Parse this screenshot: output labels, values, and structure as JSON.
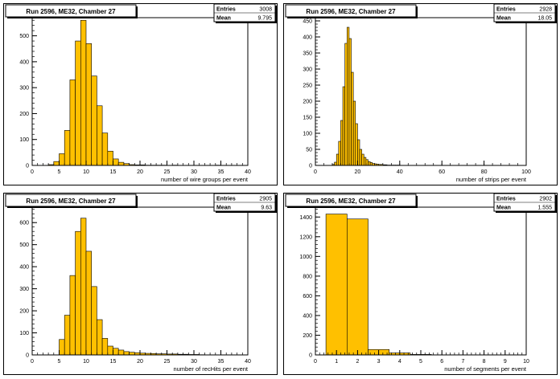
{
  "colors": {
    "fill": "#FFC000",
    "line": "#000000",
    "frame": "#ffffff"
  },
  "chart_data": [
    {
      "type": "bar",
      "title": "Run 2596, ME32, Chamber 27",
      "xlabel": "number of wire groups per event",
      "stats": {
        "entries_label": "Entries",
        "entries": "3008",
        "mean_label": "Mean",
        "mean": "9.795"
      },
      "xlim": [
        0,
        40
      ],
      "ylim": [
        0,
        570
      ],
      "xticks": [
        "0",
        "5",
        "10",
        "15",
        "20",
        "25",
        "30",
        "35",
        "40"
      ],
      "yticks": [
        "0",
        "100",
        "200",
        "300",
        "400",
        "500"
      ],
      "xtick_values": [
        0,
        5,
        10,
        15,
        20,
        25,
        30,
        35,
        40
      ],
      "ytick_values": [
        0,
        100,
        200,
        300,
        400,
        500
      ],
      "bin_edges_start": 3,
      "bin_width": 1,
      "values": [
        3,
        15,
        45,
        135,
        330,
        480,
        560,
        470,
        345,
        230,
        125,
        55,
        25,
        12,
        7,
        3,
        2,
        2,
        1,
        1,
        1,
        1,
        0,
        1,
        0,
        0,
        0,
        0,
        0,
        0,
        0,
        1
      ]
    },
    {
      "type": "bar",
      "title": "Run 2596, ME32, Chamber 27",
      "xlabel": "number of strips per event",
      "stats": {
        "entries_label": "Entries",
        "entries": "2928",
        "mean_label": "Mean",
        "mean": "18.05"
      },
      "xlim": [
        0,
        100
      ],
      "ylim": [
        0,
        460
      ],
      "xticks": [
        "0",
        "20",
        "40",
        "60",
        "80",
        "100"
      ],
      "yticks": [
        "0",
        "50",
        "100",
        "150",
        "200",
        "250",
        "300",
        "350",
        "400",
        "450"
      ],
      "xtick_values": [
        0,
        20,
        40,
        60,
        80,
        100
      ],
      "ytick_values": [
        0,
        50,
        100,
        150,
        200,
        250,
        300,
        350,
        400,
        450
      ],
      "bin_edges_start": 8,
      "bin_width": 1,
      "values": [
        3,
        10,
        35,
        75,
        140,
        245,
        380,
        430,
        395,
        290,
        200,
        130,
        80,
        50,
        35,
        25,
        18,
        12,
        9,
        6,
        5,
        4,
        3,
        3,
        2,
        2,
        1,
        1,
        1,
        1,
        1,
        1
      ]
    },
    {
      "type": "bar",
      "title": "Run 2596, ME32, Chamber 27",
      "xlabel": "number of recHits per event",
      "stats": {
        "entries_label": "Entries",
        "entries": "2905",
        "mean_label": "Mean",
        "mean": "9.63"
      },
      "xlim": [
        0,
        40
      ],
      "ylim": [
        0,
        670
      ],
      "xticks": [
        "0",
        "5",
        "10",
        "15",
        "20",
        "25",
        "30",
        "35",
        "40"
      ],
      "yticks": [
        "0",
        "100",
        "200",
        "300",
        "400",
        "500",
        "600"
      ],
      "xtick_values": [
        0,
        5,
        10,
        15,
        20,
        25,
        30,
        35,
        40
      ],
      "ytick_values": [
        0,
        100,
        200,
        300,
        400,
        500,
        600
      ],
      "bin_edges_start": 5,
      "bin_width": 1,
      "values": [
        70,
        180,
        360,
        560,
        620,
        470,
        310,
        160,
        75,
        40,
        30,
        22,
        15,
        12,
        10,
        8,
        7,
        6,
        5,
        5,
        4,
        4,
        3,
        3,
        2,
        2,
        1
      ]
    },
    {
      "type": "bar",
      "title": "Run 2596, ME32, Chamber 27",
      "xlabel": "number of segments per event",
      "stats": {
        "entries_label": "Entries",
        "entries": "2902",
        "mean_label": "Mean",
        "mean": "1.555"
      },
      "xlim": [
        0,
        10
      ],
      "ylim": [
        0,
        1500
      ],
      "xticks": [
        "0",
        "1",
        "2",
        "3",
        "4",
        "5",
        "6",
        "7",
        "8",
        "9",
        "10"
      ],
      "yticks": [
        "0",
        "200",
        "400",
        "600",
        "800",
        "1000",
        "1200",
        "1400"
      ],
      "xtick_values": [
        0,
        1,
        2,
        3,
        4,
        5,
        6,
        7,
        8,
        9,
        10
      ],
      "ytick_values": [
        0,
        200,
        400,
        600,
        800,
        1000,
        1200,
        1400
      ],
      "bin_edges_start": 0.5,
      "bin_width": 1,
      "values": [
        1430,
        1380,
        55,
        20,
        5
      ]
    }
  ]
}
